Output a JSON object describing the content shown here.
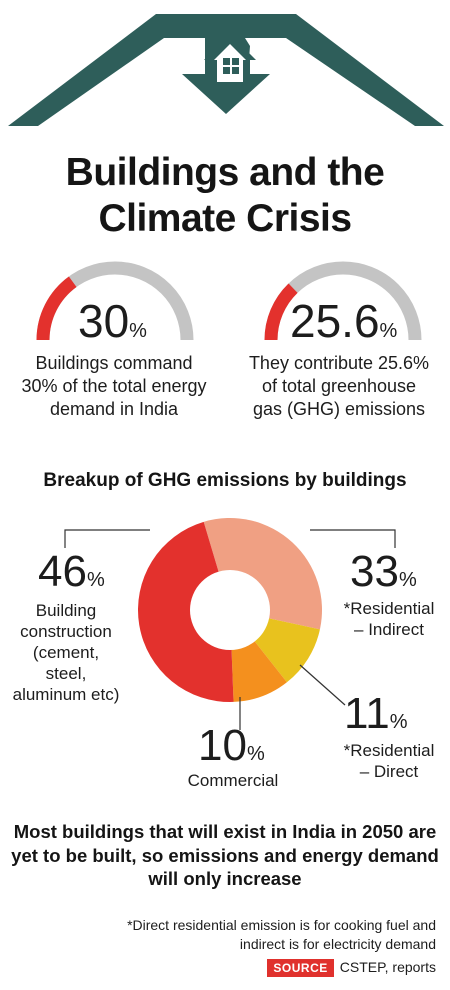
{
  "title_line1": "Buildings and the",
  "title_line2": "Climate Crisis",
  "stats": [
    {
      "value": "30",
      "unit": "%",
      "fraction": 0.3,
      "caption": [
        "Buildings command",
        "30% of the total energy",
        "demand in India"
      ]
    },
    {
      "value": "25.6",
      "unit": "%",
      "fraction": 0.256,
      "caption": [
        "They contribute 25.6%",
        "of total greenhouse",
        "gas (GHG) emissions"
      ]
    }
  ],
  "chart_data": {
    "type": "pie",
    "title": "Breakup of GHG emissions by buildings",
    "slices": [
      {
        "label": "Building construction (cement, steel, aluminum etc)",
        "value": 46,
        "color": "#e3312d"
      },
      {
        "label": "*Residential – Indirect",
        "value": 33,
        "color": "#f0a083"
      },
      {
        "label": "*Residential – Direct",
        "value": 11,
        "color": "#e8c21e"
      },
      {
        "label": "Commercial",
        "value": 10,
        "color": "#f4901e"
      }
    ]
  },
  "labels": {
    "construction": {
      "value": "46",
      "unit": "%",
      "lines": [
        "Building",
        "construction",
        "(cement,",
        "steel,",
        "aluminum etc)"
      ]
    },
    "res_indirect": {
      "value": "33",
      "unit": "%",
      "lines": [
        "*Residential",
        "– Indirect"
      ]
    },
    "res_direct": {
      "value": "11",
      "unit": "%",
      "lines": [
        "*Residential",
        "– Direct"
      ]
    },
    "commercial": {
      "value": "10",
      "unit": "%",
      "lines": [
        "Commercial"
      ]
    }
  },
  "footer": [
    "Most buildings that will exist in India in 2050 are",
    "yet to be built, so emissions and energy demand",
    "will only increase"
  ],
  "note": [
    "*Direct residential emission is for cooking fuel and",
    "indirect is for electricity demand"
  ],
  "source_label": "SOURCE",
  "source_text": "CSTEP, reports",
  "colors": {
    "roof": "#2e5e5a",
    "gauge_fill": "#e3312d",
    "gauge_track": "#c4c4c4"
  }
}
